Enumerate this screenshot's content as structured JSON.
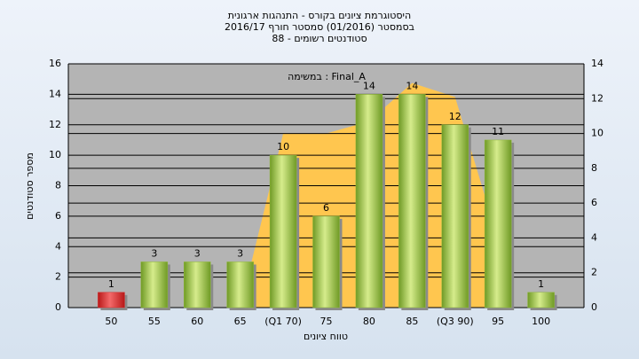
{
  "chart_data": {
    "type": "bar",
    "title": [
      "היסטוגרמת ציונים בקורס - התנהגות ארגונית",
      "בסמסטר  (01/2016)  סמסטר חורף 2016/17",
      "סטודנטים רשומים - 88"
    ],
    "annotation": "Final_A : במשימה",
    "xlabel": "טווח ציונים",
    "ylabel": "מספר סטודנטים",
    "categories": [
      "50",
      "55",
      "60",
      "65",
      "(Q1 70)",
      "75",
      "80",
      "85",
      "(Q3 90)",
      "95",
      "100"
    ],
    "series": [
      {
        "type": "bar",
        "colors": [
          "#d42a2a",
          "#8fb83a",
          "#8fb83a",
          "#8fb83a",
          "#8fb83a",
          "#8fb83a",
          "#8fb83a",
          "#8fb83a",
          "#8fb83a",
          "#8fb83a",
          "#8fb83a"
        ],
        "values": [
          1,
          3,
          3,
          3,
          10,
          6,
          14,
          14,
          12,
          11,
          1
        ]
      },
      {
        "type": "area",
        "axis": "y2",
        "color": "#ffc64f",
        "values": [
          null,
          null,
          null,
          0,
          10,
          10,
          10.7,
          12.9,
          12.1,
          3.9,
          null
        ]
      }
    ],
    "ylim": [
      0,
      16
    ],
    "yticks": [
      0,
      2,
      4,
      6,
      8,
      10,
      12,
      14,
      16
    ],
    "y2lim": [
      0,
      14
    ],
    "y2ticks": [
      0,
      2,
      4,
      6,
      8,
      10,
      12,
      14
    ],
    "grid": true
  }
}
